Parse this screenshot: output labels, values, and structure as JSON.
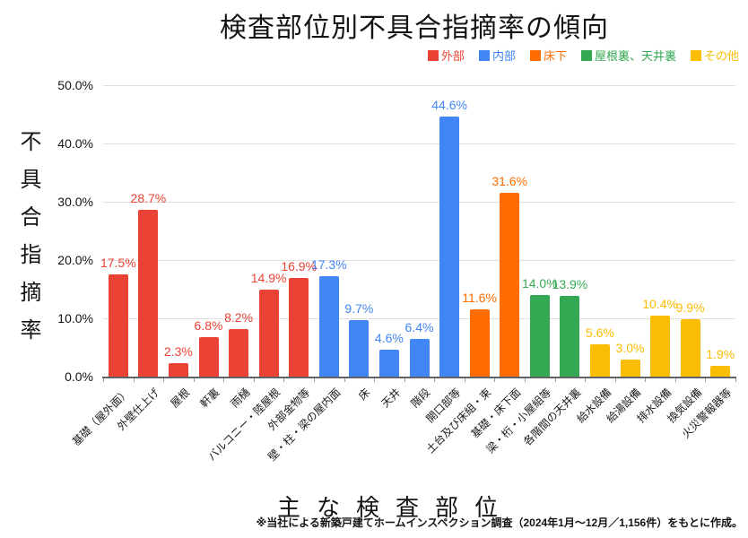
{
  "title": "検査部位別不具合指摘率の傾向",
  "legend": {
    "items": [
      {
        "label": "外部",
        "color": "#EA4335"
      },
      {
        "label": "内部",
        "color": "#4285F4"
      },
      {
        "label": "床下",
        "color": "#FF6D01"
      },
      {
        "label": "屋根裏、天井裏",
        "color": "#34A853"
      },
      {
        "label": "その他",
        "color": "#FBBC04"
      }
    ]
  },
  "footnote": "※当社による新築戸建てホームインスペクション調査（2024年1月～12月／1,156件）をもとに作成。",
  "chart_data": {
    "type": "bar",
    "title": "検査部位別不具合指摘率の傾向",
    "xlabel": "主な検査部位",
    "ylabel": "不具合指摘率",
    "ylim": [
      0,
      50
    ],
    "y_tick_labels": [
      "0.0%",
      "10.0%",
      "20.0%",
      "30.0%",
      "40.0%",
      "50.0%"
    ],
    "grid": true,
    "legend_position": "top-right",
    "group_colors": {
      "外部": "#EA4335",
      "内部": "#4285F4",
      "床下": "#FF6D01",
      "屋根裏、天井裏": "#34A853",
      "その他": "#FBBC04"
    },
    "bars": [
      {
        "category": "基礎（屋外面）",
        "value": 17.5,
        "group": "外部"
      },
      {
        "category": "外壁仕上げ",
        "value": 28.7,
        "group": "外部"
      },
      {
        "category": "屋根",
        "value": 2.3,
        "group": "外部"
      },
      {
        "category": "軒裏",
        "value": 6.8,
        "group": "外部"
      },
      {
        "category": "雨樋",
        "value": 8.2,
        "group": "外部"
      },
      {
        "category": "バルコニー・陸屋根",
        "value": 14.9,
        "group": "外部"
      },
      {
        "category": "外部金物等",
        "value": 16.9,
        "group": "外部"
      },
      {
        "category": "壁・柱・梁の屋内面",
        "value": 17.3,
        "group": "内部"
      },
      {
        "category": "床",
        "value": 9.7,
        "group": "内部"
      },
      {
        "category": "天井",
        "value": 4.6,
        "group": "内部"
      },
      {
        "category": "階段",
        "value": 6.4,
        "group": "内部"
      },
      {
        "category": "開口部等",
        "value": 44.6,
        "group": "内部"
      },
      {
        "category": "土台及び床組・束",
        "value": 11.6,
        "group": "床下"
      },
      {
        "category": "基礎・床下面",
        "value": 31.6,
        "group": "床下"
      },
      {
        "category": "梁・桁・小屋組等",
        "value": 14.0,
        "group": "屋根裏、天井裏"
      },
      {
        "category": "各階間の天井裏",
        "value": 13.9,
        "group": "屋根裏、天井裏"
      },
      {
        "category": "給水設備",
        "value": 5.6,
        "group": "その他"
      },
      {
        "category": "給湯設備",
        "value": 3.0,
        "group": "その他"
      },
      {
        "category": "排水設備",
        "value": 10.4,
        "group": "その他"
      },
      {
        "category": "換気設備",
        "value": 9.9,
        "group": "その他"
      },
      {
        "category": "火災警報器等",
        "value": 1.9,
        "group": "その他"
      }
    ]
  }
}
